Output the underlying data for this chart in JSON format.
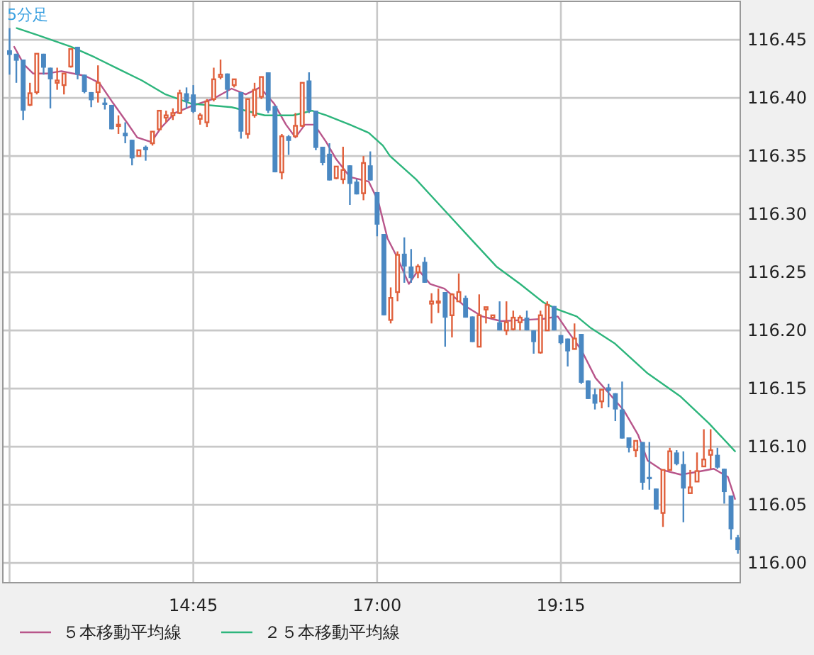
{
  "chart_data": {
    "type": "candlestick",
    "title": "5分足",
    "x": [
      12.5,
      12.5833,
      12.6667,
      12.75,
      12.8333,
      12.9167,
      13,
      13.0833,
      13.1667,
      13.25,
      13.3333,
      13.4167,
      13.5,
      13.5833,
      13.6667,
      13.75,
      13.8333,
      13.9167,
      14,
      14.0833,
      14.1667,
      14.25,
      14.3333,
      14.4167,
      14.5,
      14.5833,
      14.6667,
      14.75,
      14.8333,
      14.9167,
      15,
      15.0833,
      15.1667,
      15.25,
      15.3333,
      15.4167,
      15.5,
      15.5833,
      15.6667,
      15.75,
      15.8333,
      15.9167,
      16,
      16.0833,
      16.1667,
      16.25,
      16.3333,
      16.4167,
      16.5,
      16.5833,
      16.6667,
      16.75,
      16.8333,
      16.9167,
      17,
      17.0833,
      17.1667,
      17.25,
      17.3333,
      17.4167,
      17.5,
      17.5833,
      17.6667,
      17.75,
      17.8333,
      17.9167,
      18,
      18.0833,
      18.1667,
      18.25,
      18.3333,
      18.4167,
      18.5,
      18.5833,
      18.6667,
      18.75,
      18.8333,
      18.9167,
      19,
      19.0833,
      19.1667,
      19.25,
      19.3333,
      19.4167,
      19.5,
      19.5833,
      19.6667,
      19.75,
      19.8333,
      19.9167,
      20,
      20.0833,
      20.1667,
      20.25,
      20.3333,
      20.4167,
      20.5,
      20.5833,
      20.6667,
      20.75,
      20.8333,
      20.9167,
      21,
      21.0833,
      21.1667,
      21.25,
      21.3333,
      21.4167
    ],
    "ohlc": [
      [
        116.441,
        116.46,
        116.42,
        116.437
      ],
      [
        116.438,
        116.438,
        116.413,
        116.432
      ],
      [
        116.433,
        116.433,
        116.381,
        116.389
      ],
      [
        116.394,
        116.413,
        116.393,
        116.404
      ],
      [
        116.405,
        116.438,
        116.403,
        116.438
      ],
      [
        116.438,
        116.438,
        116.42,
        116.426
      ],
      [
        116.426,
        116.426,
        116.391,
        116.416
      ],
      [
        116.413,
        116.426,
        116.407,
        116.415
      ],
      [
        116.411,
        116.421,
        116.403,
        116.421
      ],
      [
        116.427,
        116.442,
        116.426,
        116.442
      ],
      [
        116.444,
        116.444,
        116.416,
        116.42
      ],
      [
        116.42,
        116.42,
        116.404,
        116.405
      ],
      [
        116.405,
        116.405,
        116.392,
        116.398
      ],
      [
        116.405,
        116.428,
        116.396,
        116.413
      ],
      [
        116.396,
        116.4,
        116.39,
        116.394
      ],
      [
        116.394,
        116.394,
        116.373,
        116.373
      ],
      [
        116.376,
        116.385,
        116.369,
        116.377
      ],
      [
        116.37,
        116.379,
        116.361,
        116.367
      ],
      [
        116.364,
        116.364,
        116.342,
        116.348
      ],
      [
        116.35,
        116.355,
        116.35,
        116.355
      ],
      [
        116.358,
        116.359,
        116.346,
        116.355
      ],
      [
        116.361,
        116.371,
        116.359,
        116.371
      ],
      [
        116.373,
        116.389,
        116.372,
        116.389
      ],
      [
        116.383,
        116.389,
        116.379,
        116.385
      ],
      [
        116.385,
        116.391,
        116.381,
        116.387
      ],
      [
        116.387,
        116.407,
        116.386,
        116.404
      ],
      [
        116.404,
        116.409,
        116.391,
        116.397
      ],
      [
        116.403,
        116.411,
        116.387,
        116.388
      ],
      [
        116.382,
        116.387,
        116.377,
        116.385
      ],
      [
        116.379,
        116.399,
        116.375,
        116.397
      ],
      [
        116.399,
        116.426,
        116.397,
        116.416
      ],
      [
        116.418,
        116.433,
        116.416,
        116.42
      ],
      [
        116.421,
        116.421,
        116.399,
        116.407
      ],
      [
        116.411,
        116.416,
        116.409,
        116.416
      ],
      [
        116.405,
        116.405,
        116.365,
        116.371
      ],
      [
        116.369,
        116.399,
        116.365,
        116.399
      ],
      [
        116.385,
        116.413,
        116.383,
        116.407
      ],
      [
        116.401,
        116.418,
        116.399,
        116.418
      ],
      [
        116.422,
        116.422,
        116.387,
        116.389
      ],
      [
        116.393,
        116.393,
        116.336,
        116.336
      ],
      [
        116.336,
        116.369,
        116.33,
        116.367
      ],
      [
        116.367,
        116.368,
        116.351,
        116.363
      ],
      [
        116.367,
        116.387,
        116.366,
        116.376
      ],
      [
        116.376,
        116.413,
        116.375,
        116.413
      ],
      [
        116.415,
        116.422,
        116.387,
        116.389
      ],
      [
        116.389,
        116.389,
        116.355,
        116.357
      ],
      [
        116.358,
        116.358,
        116.342,
        116.344
      ],
      [
        116.352,
        116.361,
        116.329,
        116.329
      ],
      [
        116.331,
        116.341,
        116.33,
        116.341
      ],
      [
        116.33,
        116.358,
        116.326,
        116.338
      ],
      [
        116.342,
        116.342,
        116.308,
        116.326
      ],
      [
        116.328,
        116.33,
        116.317,
        116.317
      ],
      [
        116.318,
        116.35,
        116.312,
        116.344
      ],
      [
        116.342,
        116.354,
        116.329,
        116.329
      ],
      [
        116.319,
        116.319,
        116.281,
        116.291
      ],
      [
        116.283,
        116.283,
        116.213,
        116.213
      ],
      [
        116.209,
        116.237,
        116.206,
        116.228
      ],
      [
        116.233,
        116.268,
        116.225,
        116.265
      ],
      [
        116.266,
        116.28,
        116.241,
        116.255
      ],
      [
        116.255,
        116.27,
        116.241,
        116.245
      ],
      [
        116.25,
        116.257,
        116.245,
        116.255
      ],
      [
        116.259,
        116.263,
        116.241,
        116.241
      ],
      [
        116.223,
        116.232,
        116.206,
        116.225
      ],
      [
        116.224,
        116.236,
        116.215,
        116.225
      ],
      [
        116.233,
        116.233,
        116.186,
        116.211
      ],
      [
        116.213,
        116.232,
        116.194,
        116.231
      ],
      [
        116.225,
        116.249,
        116.225,
        116.233
      ],
      [
        116.228,
        116.23,
        116.211,
        116.211
      ],
      [
        116.212,
        116.212,
        116.19,
        116.19
      ],
      [
        116.186,
        116.231,
        116.186,
        116.213
      ],
      [
        116.218,
        116.22,
        116.206,
        116.22
      ],
      [
        116.211,
        116.213,
        116.211,
        116.213
      ],
      [
        116.207,
        116.225,
        116.2,
        116.2
      ],
      [
        116.2,
        116.225,
        116.196,
        116.207
      ],
      [
        116.201,
        116.217,
        116.2,
        116.211
      ],
      [
        116.207,
        116.213,
        116.2,
        116.211
      ],
      [
        116.211,
        116.217,
        116.2,
        116.2
      ],
      [
        116.2,
        116.2,
        116.18,
        116.19
      ],
      [
        116.181,
        116.217,
        116.18,
        116.213
      ],
      [
        116.2,
        116.225,
        116.2,
        116.222
      ],
      [
        116.221,
        116.221,
        116.2,
        116.2
      ],
      [
        116.196,
        116.196,
        116.188,
        116.189
      ],
      [
        116.193,
        116.193,
        116.169,
        116.182
      ],
      [
        116.184,
        116.206,
        116.184,
        116.193
      ],
      [
        116.197,
        116.197,
        116.154,
        116.155
      ],
      [
        116.157,
        116.157,
        116.141,
        116.141
      ],
      [
        116.145,
        116.15,
        116.132,
        116.137
      ],
      [
        116.139,
        116.149,
        116.133,
        116.149
      ],
      [
        116.151,
        116.154,
        116.134,
        116.148
      ],
      [
        116.146,
        116.146,
        116.122,
        116.132
      ],
      [
        116.132,
        116.156,
        116.107,
        116.107
      ],
      [
        116.108,
        116.108,
        116.095,
        116.099
      ],
      [
        116.097,
        116.105,
        116.091,
        116.105
      ],
      [
        116.104,
        116.104,
        116.063,
        116.069
      ],
      [
        116.074,
        116.104,
        116.063,
        116.072
      ],
      [
        116.064,
        116.064,
        116.046,
        116.046
      ],
      [
        116.043,
        116.08,
        116.031,
        116.08
      ],
      [
        116.08,
        116.099,
        116.08,
        116.096
      ],
      [
        116.095,
        116.097,
        116.084,
        116.085
      ],
      [
        116.085,
        116.096,
        116.035,
        116.064
      ],
      [
        116.06,
        116.08,
        116.06,
        116.065
      ],
      [
        116.07,
        116.095,
        116.07,
        116.079
      ],
      [
        116.083,
        116.115,
        116.083,
        116.089
      ],
      [
        116.093,
        116.115,
        116.081,
        116.097
      ],
      [
        116.093,
        116.099,
        116.081,
        116.082
      ],
      [
        116.081,
        116.081,
        116.051,
        116.061
      ],
      [
        116.058,
        116.058,
        116.02,
        116.029
      ],
      [
        116.022,
        116.024,
        116.008,
        116.011
      ]
    ],
    "colors": [
      "#4a88c2",
      "#4a88c2",
      "#4a88c2",
      "#e0603c",
      "#e0603c",
      "#4a88c2",
      "#4a88c2",
      "#e0603c",
      "#e0603c",
      "#e0603c",
      "#4a88c2",
      "#4a88c2",
      "#4a88c2",
      "#e0603c",
      "#4a88c2",
      "#4a88c2",
      "#e0603c",
      "#4a88c2",
      "#4a88c2",
      "#e0603c",
      "#4a88c2",
      "#e0603c",
      "#e0603c",
      "#e0603c",
      "#e0603c",
      "#e0603c",
      "#4a88c2",
      "#4a88c2",
      "#e0603c",
      "#e0603c",
      "#e0603c",
      "#e0603c",
      "#4a88c2",
      "#e0603c",
      "#4a88c2",
      "#e0603c",
      "#e0603c",
      "#e0603c",
      "#4a88c2",
      "#4a88c2",
      "#e0603c",
      "#4a88c2",
      "#e0603c",
      "#e0603c",
      "#4a88c2",
      "#4a88c2",
      "#4a88c2",
      "#4a88c2",
      "#e0603c",
      "#e0603c",
      "#4a88c2",
      "#4a88c2",
      "#e0603c",
      "#4a88c2",
      "#4a88c2",
      "#4a88c2",
      "#e0603c",
      "#e0603c",
      "#4a88c2",
      "#4a88c2",
      "#e0603c",
      "#4a88c2",
      "#e0603c",
      "#e0603c",
      "#4a88c2",
      "#e0603c",
      "#e0603c",
      "#4a88c2",
      "#4a88c2",
      "#e0603c",
      "#e0603c",
      "#e0603c",
      "#4a88c2",
      "#e0603c",
      "#e0603c",
      "#e0603c",
      "#4a88c2",
      "#4a88c2",
      "#e0603c",
      "#e0603c",
      "#4a88c2",
      "#4a88c2",
      "#4a88c2",
      "#e0603c",
      "#4a88c2",
      "#4a88c2",
      "#4a88c2",
      "#e0603c",
      "#4a88c2",
      "#4a88c2",
      "#4a88c2",
      "#4a88c2",
      "#e0603c",
      "#4a88c2",
      "#4a88c2",
      "#4a88c2",
      "#e0603c",
      "#e0603c",
      "#4a88c2",
      "#4a88c2",
      "#e0603c",
      "#e0603c",
      "#e0603c",
      "#e0603c",
      "#4a88c2",
      "#4a88c2",
      "#4a88c2",
      "#4a88c2"
    ],
    "series": [
      {
        "name": "５本移動平均線",
        "type": "line",
        "color": "#b8558a",
        "x": [
          12.557,
          12.674,
          12.788,
          12.962,
          13.135,
          13.425,
          13.599,
          13.773,
          13.946,
          14.063,
          14.236,
          14.351,
          14.524,
          14.727,
          14.988,
          15.219,
          15.392,
          15.566,
          15.74,
          15.885,
          16.0,
          16.116,
          16.233,
          16.377,
          16.493,
          16.667,
          16.898,
          17.014,
          17.128,
          17.245,
          17.389,
          17.505,
          17.649,
          17.823,
          18.056,
          18.286,
          18.517,
          18.807,
          19.038,
          19.212,
          19.328,
          19.502,
          19.675,
          19.849,
          20.023,
          20.196,
          20.313,
          20.486,
          20.717,
          20.891,
          21.122,
          21.295,
          21.382
        ],
        "values": [
          116.444,
          116.429,
          116.421,
          116.421,
          116.423,
          116.419,
          116.413,
          116.395,
          116.378,
          116.366,
          116.362,
          116.374,
          116.387,
          116.393,
          116.399,
          116.408,
          116.403,
          116.409,
          116.395,
          116.377,
          116.366,
          116.377,
          116.377,
          116.362,
          116.348,
          116.332,
          116.328,
          116.311,
          116.279,
          116.263,
          116.24,
          116.252,
          116.24,
          116.236,
          116.222,
          116.212,
          116.208,
          116.209,
          116.21,
          116.212,
          116.2,
          116.183,
          116.159,
          116.145,
          116.131,
          116.11,
          116.088,
          116.08,
          116.076,
          116.078,
          116.081,
          116.074,
          116.055
        ]
      },
      {
        "name": "２５本移動平均線",
        "type": "line",
        "color": "#2db57c",
        "x": [
          12.587,
          12.847,
          13.252,
          13.542,
          13.83,
          14.12,
          14.41,
          14.727,
          15.219,
          15.625,
          15.972,
          16.203,
          16.377,
          16.667,
          16.898,
          17.071,
          17.158,
          17.476,
          17.882,
          18.17,
          18.46,
          18.75,
          19.038,
          19.212,
          19.444,
          19.618,
          19.906,
          20.313,
          20.717,
          21.064,
          21.382
        ],
        "values": [
          116.46,
          116.454,
          116.444,
          116.435,
          116.425,
          116.415,
          116.403,
          116.395,
          116.392,
          116.385,
          116.385,
          116.389,
          116.385,
          116.377,
          116.37,
          116.359,
          116.35,
          116.33,
          116.299,
          116.277,
          116.255,
          116.24,
          116.224,
          116.218,
          116.212,
          116.202,
          116.189,
          116.163,
          116.143,
          116.12,
          116.096
        ]
      }
    ],
    "xlim": [
      12.418,
      21.446
    ],
    "xticks": [
      {
        "value": 12.5,
        "label": null
      },
      {
        "value": 14.75,
        "label": "14:45"
      },
      {
        "value": 17,
        "label": "17:00"
      },
      {
        "value": 19.25,
        "label": "19:15"
      }
    ],
    "ylim": [
      115.983,
      116.483
    ],
    "yticks": [
      {
        "value": 116,
        "label": "116.00"
      },
      {
        "value": 116.05,
        "label": "116.05"
      },
      {
        "value": 116.1,
        "label": "116.10"
      },
      {
        "value": 116.15,
        "label": "116.15"
      },
      {
        "value": 116.2,
        "label": "116.20"
      },
      {
        "value": 116.25,
        "label": "116.25"
      },
      {
        "value": 116.3,
        "label": "116.30"
      },
      {
        "value": 116.35,
        "label": "116.35"
      },
      {
        "value": 116.4,
        "label": "116.40"
      },
      {
        "value": 116.45,
        "label": "116.45"
      }
    ],
    "grid": true,
    "legend": "bottom"
  }
}
